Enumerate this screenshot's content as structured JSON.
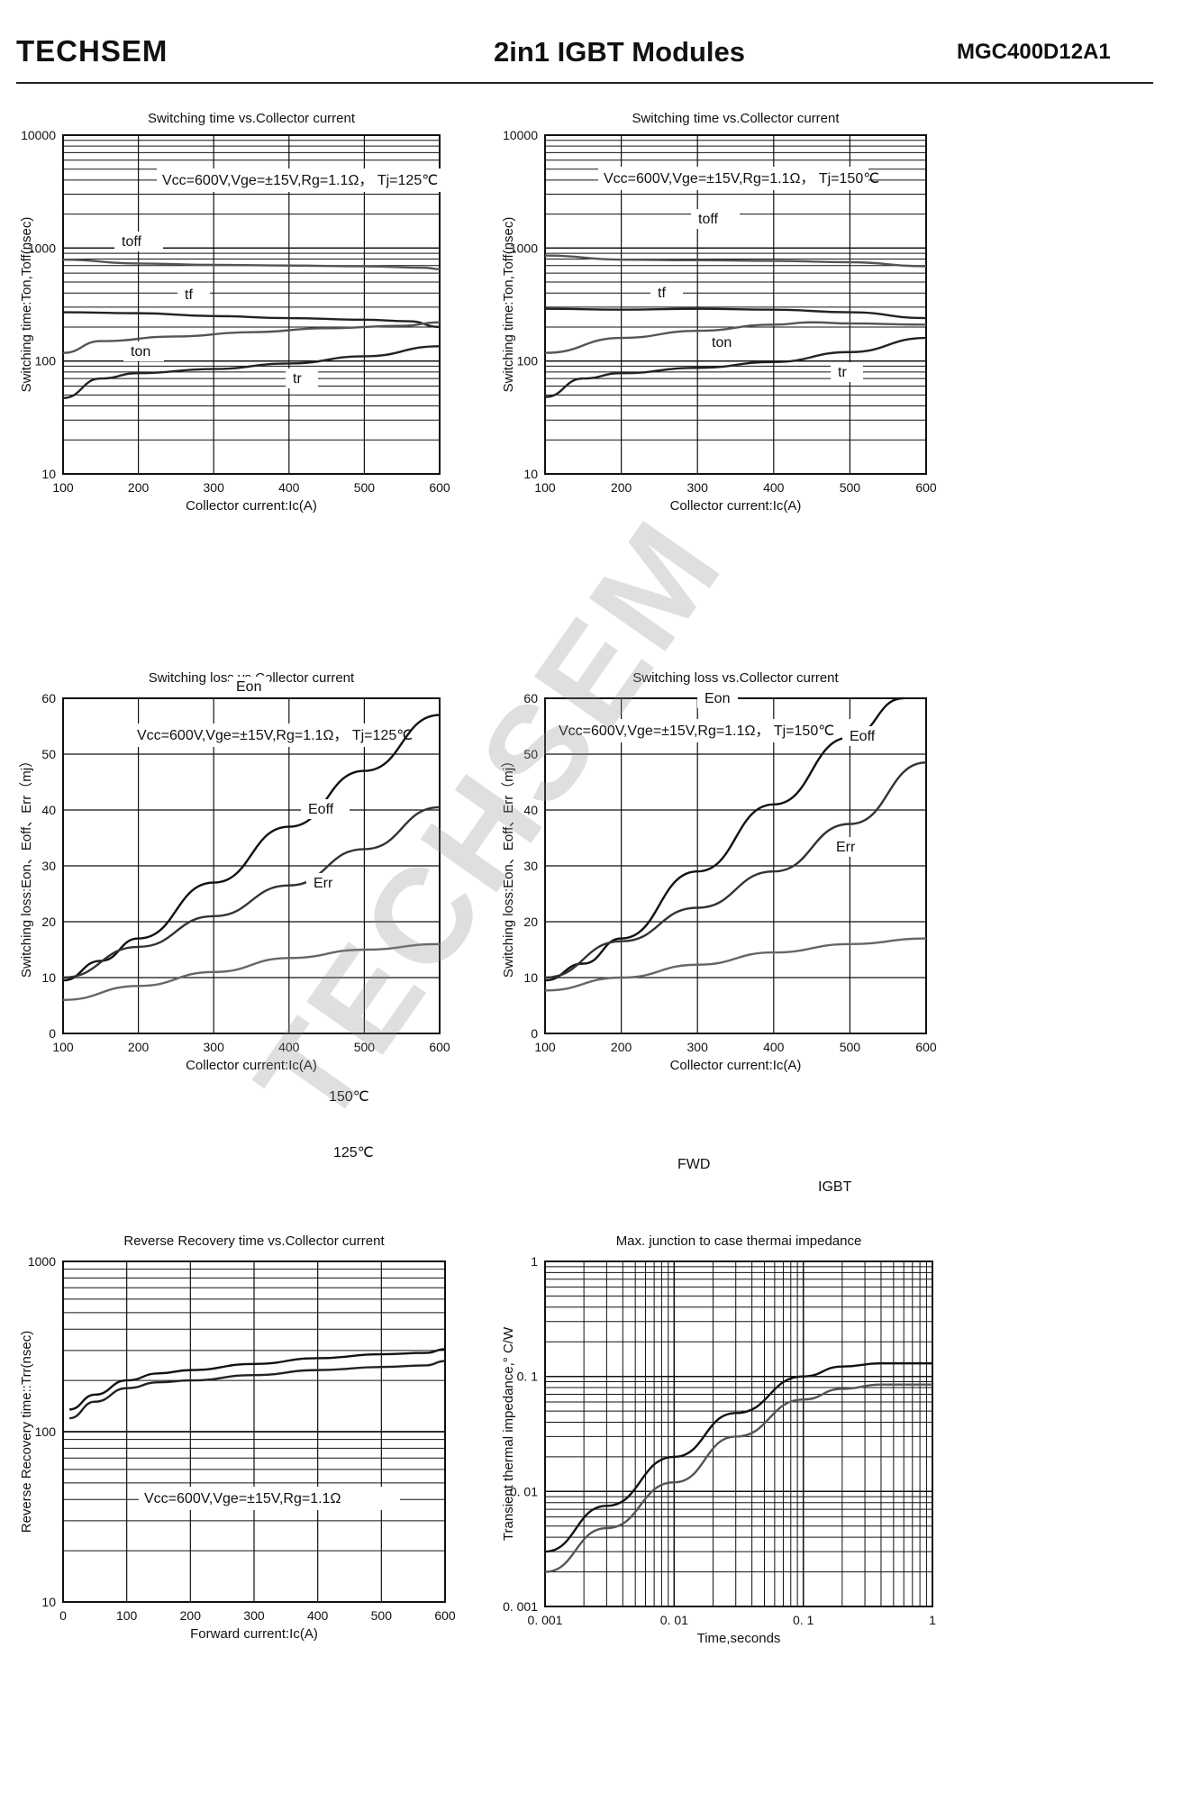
{
  "header": {
    "brand": "TECHSEM",
    "title": "2in1  IGBT  Modules",
    "part_number": "MGC400D12A1"
  },
  "watermark": "TECHSEM",
  "chart_data": [
    {
      "type": "line",
      "scale": "log-y",
      "title": "Switching time vs.Collector current",
      "xlabel": "Collector current:Ic(A)",
      "ylabel": "Switching time:Ton,Toff(nsec)",
      "annotation": "Vcc=600V,Vge=±15V,Rg=1.1Ω， Tj=125℃",
      "xlim": [
        100,
        600
      ],
      "ylim": [
        10,
        10000
      ],
      "xticks": [
        100,
        200,
        300,
        400,
        500,
        600
      ],
      "yticks": [
        10,
        100,
        1000,
        10000
      ],
      "ytick_labels": [
        "10",
        "100",
        "1000",
        "10000"
      ],
      "series": [
        {
          "name": "toff",
          "x": [
            100,
            200,
            300,
            400,
            500,
            580,
            600
          ],
          "values": [
            790,
            730,
            710,
            700,
            690,
            670,
            650
          ]
        },
        {
          "name": "tf",
          "x": [
            100,
            200,
            300,
            400,
            500,
            560,
            600
          ],
          "values": [
            270,
            265,
            250,
            240,
            232,
            225,
            200
          ]
        },
        {
          "name": "ton",
          "x": [
            100,
            150,
            250,
            350,
            450,
            550,
            600
          ],
          "values": [
            118,
            150,
            165,
            180,
            195,
            205,
            220
          ]
        },
        {
          "name": "tr",
          "x": [
            100,
            150,
            200,
            300,
            400,
            500,
            600
          ],
          "values": [
            47,
            70,
            78,
            85,
            95,
            110,
            135
          ]
        }
      ]
    },
    {
      "type": "line",
      "scale": "log-y",
      "title": "Switching time vs.Collector current",
      "xlabel": "Collector current:Ic(A)",
      "ylabel": "Switching time:Ton,Toff(nsec)",
      "annotation": "Vcc=600V,Vge=±15V,Rg=1.1Ω， Tj=150℃",
      "xlim": [
        100,
        600
      ],
      "ylim": [
        10,
        10000
      ],
      "xticks": [
        100,
        200,
        300,
        400,
        500,
        600
      ],
      "yticks": [
        10,
        100,
        1000,
        10000
      ],
      "ytick_labels": [
        "10",
        "100",
        "1000",
        "10000"
      ],
      "series": [
        {
          "name": "toff",
          "x": [
            100,
            200,
            300,
            400,
            500,
            600
          ],
          "values": [
            860,
            790,
            780,
            770,
            750,
            690
          ]
        },
        {
          "name": "tf",
          "x": [
            100,
            200,
            300,
            400,
            500,
            600
          ],
          "values": [
            290,
            285,
            290,
            285,
            270,
            240
          ]
        },
        {
          "name": "ton",
          "x": [
            100,
            200,
            300,
            400,
            450,
            500,
            600
          ],
          "values": [
            118,
            160,
            185,
            210,
            220,
            215,
            210
          ]
        },
        {
          "name": "tr",
          "x": [
            100,
            150,
            200,
            300,
            400,
            500,
            600
          ],
          "values": [
            48,
            70,
            78,
            87,
            98,
            120,
            160
          ]
        }
      ]
    },
    {
      "type": "line",
      "title": "Switching loss vs.Collector current",
      "xlabel": "Collector current:Ic(A)",
      "ylabel": "Switching loss:Eon、Eoff、Err（mj）",
      "annotation": "Vcc=600V,Vge=±15V,Rg=1.1Ω， Tj=125℃",
      "xlim": [
        100,
        600
      ],
      "ylim": [
        0,
        60
      ],
      "xticks": [
        100,
        200,
        300,
        400,
        500,
        600
      ],
      "yticks": [
        0,
        10,
        20,
        30,
        40,
        50,
        60
      ],
      "series": [
        {
          "name": "Eon",
          "x": [
            100,
            150,
            200,
            300,
            400,
            500,
            600
          ],
          "values": [
            9.5,
            13,
            17,
            27,
            37,
            47,
            57
          ]
        },
        {
          "name": "Eoff",
          "x": [
            100,
            200,
            300,
            400,
            500,
            600
          ],
          "values": [
            10,
            15.5,
            21,
            26.5,
            33,
            40.5
          ]
        },
        {
          "name": "Err",
          "x": [
            100,
            200,
            300,
            400,
            500,
            600
          ],
          "values": [
            6,
            8.5,
            11,
            13.5,
            15,
            16
          ]
        }
      ]
    },
    {
      "type": "line",
      "title": "Switching loss vs.Collector current",
      "xlabel": "Collector current:Ic(A)",
      "ylabel": "Switching loss:Eon、Eoff、Err（mj）",
      "annotation": "Vcc=600V,Vge=±15V,Rg=1.1Ω， Tj=150℃",
      "xlim": [
        100,
        600
      ],
      "ylim": [
        0,
        60
      ],
      "xticks": [
        100,
        200,
        300,
        400,
        500,
        600
      ],
      "yticks": [
        0,
        10,
        20,
        30,
        40,
        50,
        60
      ],
      "series": [
        {
          "name": "Eon",
          "x": [
            100,
            150,
            200,
            300,
            400,
            500,
            570
          ],
          "values": [
            9.5,
            12.5,
            17,
            29,
            41,
            53,
            60
          ]
        },
        {
          "name": "Eoff",
          "x": [
            100,
            200,
            300,
            400,
            500,
            600
          ],
          "values": [
            10,
            16.5,
            22.5,
            29,
            37.5,
            48.5
          ]
        },
        {
          "name": "Err",
          "x": [
            100,
            200,
            300,
            400,
            500,
            600
          ],
          "values": [
            7.7,
            10,
            12.3,
            14.5,
            16,
            17
          ]
        }
      ]
    },
    {
      "type": "line",
      "scale": "log-y",
      "title": "Reverse Recovery time vs.Collector current",
      "xlabel": "Forward current:Ic(A)",
      "ylabel": "Reverse Recovery time::Trr(nsec)",
      "annotation": "Vcc=600V,Vge=±15V,Rg=1.1Ω",
      "xlim": [
        0,
        600
      ],
      "ylim": [
        10,
        1000
      ],
      "xticks": [
        0,
        100,
        200,
        300,
        400,
        500,
        600
      ],
      "yticks": [
        10,
        100,
        1000
      ],
      "series": [
        {
          "name": "150℃",
          "x": [
            10,
            50,
            100,
            150,
            200,
            300,
            400,
            500,
            570,
            600
          ],
          "values": [
            135,
            165,
            200,
            220,
            230,
            250,
            270,
            285,
            290,
            305
          ]
        },
        {
          "name": "125℃",
          "x": [
            10,
            50,
            100,
            150,
            200,
            300,
            400,
            500,
            570,
            600
          ],
          "values": [
            120,
            150,
            180,
            195,
            200,
            215,
            230,
            240,
            245,
            260
          ]
        }
      ]
    },
    {
      "type": "line",
      "scale": "log-log",
      "title": "Max. junction to case thermai impedance",
      "xlabel": "Time,seconds",
      "ylabel": "Transient thermal impedance,° C/W",
      "xlim": [
        0.001,
        1
      ],
      "ylim": [
        0.001,
        1
      ],
      "xticks": [
        0.001,
        0.01,
        0.1,
        1
      ],
      "xtick_labels": [
        "0. 001",
        "0. 01",
        "0. 1",
        "1"
      ],
      "yticks": [
        0.001,
        0.01,
        0.1,
        1
      ],
      "ytick_labels": [
        "0. 001",
        "0. 01",
        "0. 1",
        "1"
      ],
      "series": [
        {
          "name": "FWD",
          "x": [
            0.001,
            0.003,
            0.01,
            0.03,
            0.1,
            0.2,
            0.4,
            1
          ],
          "values": [
            0.003,
            0.0075,
            0.02,
            0.048,
            0.1,
            0.122,
            0.13,
            0.13
          ]
        },
        {
          "name": "IGBT",
          "x": [
            0.001,
            0.003,
            0.01,
            0.03,
            0.1,
            0.2,
            0.4,
            1
          ],
          "values": [
            0.002,
            0.0048,
            0.012,
            0.03,
            0.063,
            0.078,
            0.085,
            0.085
          ]
        }
      ]
    }
  ]
}
